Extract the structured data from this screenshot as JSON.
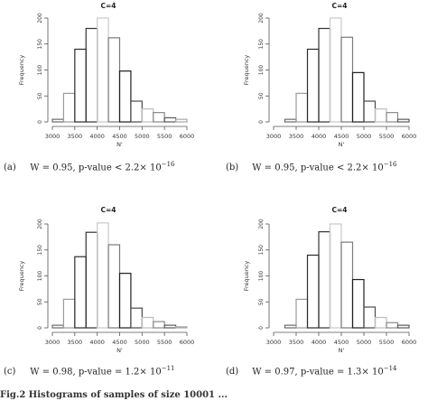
{
  "chart_data": [
    {
      "type": "bar",
      "title": "C=4",
      "xlabel": "N'",
      "ylabel": "Frequency",
      "x_ticks": [
        3000,
        3500,
        4000,
        4500,
        5000,
        5500,
        6000
      ],
      "y_ticks": [
        0,
        50,
        100,
        150,
        200
      ],
      "xlim": [
        3000,
        6000
      ],
      "ylim": [
        0,
        200
      ],
      "bin_width": 250,
      "bins_start": [
        3000,
        3250,
        3500,
        3750,
        4000,
        4250,
        4500,
        4750,
        5000,
        5250,
        5500,
        5750
      ],
      "values": [
        5,
        55,
        140,
        180,
        200,
        162,
        98,
        40,
        25,
        18,
        8,
        5
      ]
    },
    {
      "type": "bar",
      "title": "C=4",
      "xlabel": "N'",
      "ylabel": "Frequency",
      "x_ticks": [
        3000,
        3500,
        4000,
        4500,
        5000,
        5500,
        6000
      ],
      "y_ticks": [
        0,
        50,
        100,
        150,
        200
      ],
      "xlim": [
        3000,
        6000
      ],
      "ylim": [
        0,
        200
      ],
      "bin_width": 250,
      "bins_start": [
        3250,
        3500,
        3750,
        4000,
        4250,
        4500,
        4750,
        5000,
        5250,
        5500,
        5750
      ],
      "values": [
        5,
        55,
        140,
        180,
        200,
        163,
        95,
        40,
        25,
        18,
        5
      ]
    },
    {
      "type": "bar",
      "title": "C=4",
      "xlabel": "N'",
      "ylabel": "Frequency",
      "x_ticks": [
        3000,
        3500,
        4000,
        4500,
        5000,
        5500,
        6000
      ],
      "y_ticks": [
        0,
        50,
        100,
        150,
        200
      ],
      "xlim": [
        3000,
        6000
      ],
      "ylim": [
        0,
        200
      ],
      "bin_width": 250,
      "bins_start": [
        3000,
        3250,
        3500,
        3750,
        4000,
        4250,
        4500,
        4750,
        5000,
        5250,
        5500,
        5750
      ],
      "values": [
        5,
        55,
        137,
        184,
        202,
        160,
        105,
        38,
        20,
        12,
        5,
        2
      ]
    },
    {
      "type": "bar",
      "title": "C=4",
      "xlabel": "N'",
      "ylabel": "Frequency",
      "x_ticks": [
        3000,
        3500,
        4000,
        4500,
        5000,
        5500,
        6000
      ],
      "y_ticks": [
        0,
        50,
        100,
        150,
        200
      ],
      "xlim": [
        3000,
        6000
      ],
      "ylim": [
        0,
        200
      ],
      "bin_width": 250,
      "bins_start": [
        3250,
        3500,
        3750,
        4000,
        4250,
        4500,
        4750,
        5000,
        5250,
        5500,
        5750
      ],
      "values": [
        5,
        55,
        140,
        185,
        200,
        165,
        93,
        40,
        20,
        10,
        5
      ]
    }
  ],
  "captions": [
    {
      "tag": "(a)",
      "text": "W = 0.95, p-value < 2.2× 10",
      "exp": "−16"
    },
    {
      "tag": "(b)",
      "text": "W = 0.95, p-value < 2.2× 10",
      "exp": "−16"
    },
    {
      "tag": "(c)",
      "text": "W = 0.98, p-value = 1.2× 10",
      "exp": "−11"
    },
    {
      "tag": "(d)",
      "text": "W = 0.97, p-value = 1.3× 10",
      "exp": "−14"
    }
  ],
  "footer": "Fig.2 Histograms of samples of size 10001 ..."
}
